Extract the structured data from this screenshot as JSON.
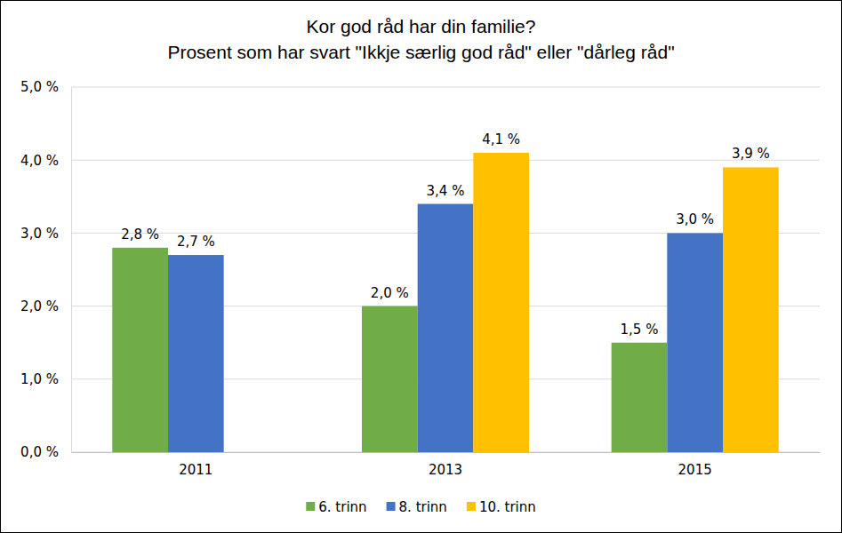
{
  "chart_data": {
    "type": "bar",
    "title": "Kor god råd har din familie?",
    "subtitle": "Prosent som har svart \"Ikkje særlig god råd\" eller \"dårleg råd\"",
    "categories": [
      "2011",
      "2013",
      "2015"
    ],
    "series": [
      {
        "name": "6. trinn",
        "color": "#70ad47",
        "values": [
          2.8,
          2.0,
          1.5
        ],
        "value_labels": [
          "2,8 %",
          "2,0 %",
          "1,5 %"
        ]
      },
      {
        "name": "8. trinn",
        "color": "#4472c4",
        "values": [
          2.7,
          3.4,
          3.0
        ],
        "value_labels": [
          "2,7 %",
          "3,4 %",
          "3,0 %"
        ]
      },
      {
        "name": "10. trinn",
        "color": "#ffc000",
        "values": [
          null,
          4.1,
          3.9
        ],
        "value_labels": [
          null,
          "4,1 %",
          "3,9 %"
        ]
      }
    ],
    "ylim": [
      0,
      5
    ],
    "yticks": [
      {
        "value": 0,
        "label": "0,0 %"
      },
      {
        "value": 1,
        "label": "1,0 %"
      },
      {
        "value": 2,
        "label": "2,0 %"
      },
      {
        "value": 3,
        "label": "3,0 %"
      },
      {
        "value": 4,
        "label": "4,0 %"
      },
      {
        "value": 5,
        "label": "5,0 %"
      }
    ],
    "grid": true,
    "data_labels": true,
    "legend": "bottom"
  }
}
